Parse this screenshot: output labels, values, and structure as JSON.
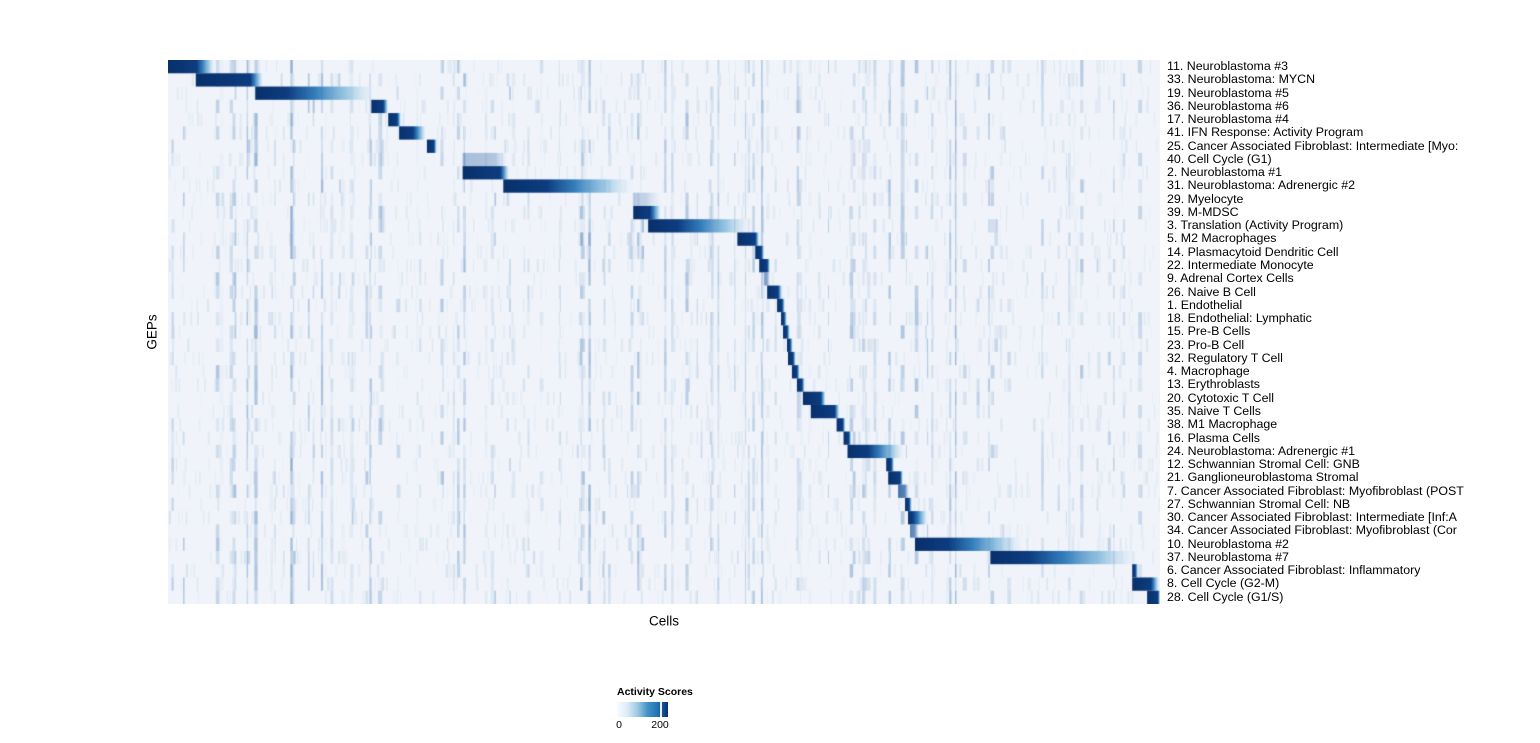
{
  "chart_data": {
    "type": "heatmap",
    "title": "",
    "xlabel": "Cells",
    "ylabel": "GEPs",
    "grid": false,
    "row_labels_position": "right",
    "legend": {
      "title": "Activity Scores",
      "min_label": "0",
      "tick_label": "200",
      "min_value": 0,
      "tick_value": 200,
      "position": "bottom-left"
    },
    "colormap": {
      "name": "Blues",
      "background": "#f0f4fa",
      "low": "#f7fbff",
      "high": "#08306b",
      "scale": [
        "#f7fbff",
        "#deebf7",
        "#9ecae1",
        "#4292c6",
        "#2171b5",
        "#08306b"
      ]
    },
    "n_rows": 41,
    "rows": [
      {
        "label": "11. Neuroblastoma #3",
        "block_start": 0.0,
        "block_peak": 0.029,
        "block_end": 0.047,
        "intensity": 1
      },
      {
        "label": "33. Neuroblastoma: MYCN",
        "block_start": 0.028,
        "block_peak": 0.083,
        "block_end": 0.096,
        "intensity": 1
      },
      {
        "label": "19. Neuroblastoma #5",
        "block_start": 0.088,
        "block_peak": 0.12,
        "block_end": 0.21,
        "intensity": 1
      },
      {
        "label": "36. Neuroblastoma #6",
        "block_start": 0.205,
        "block_peak": 0.217,
        "block_end": 0.222,
        "intensity": 1
      },
      {
        "label": "17. Neuroblastoma #4",
        "block_start": 0.222,
        "block_peak": 0.231,
        "block_end": 0.235,
        "intensity": 1
      },
      {
        "label": "41. IFN Response: Activity Program",
        "block_start": 0.233,
        "block_peak": 0.247,
        "block_end": 0.26,
        "intensity": 1
      },
      {
        "label": "25. Cancer Associated Fibroblast: Intermediate [Myo:",
        "block_start": 0.261,
        "block_peak": 0.268,
        "block_end": 0.271,
        "intensity": 1
      },
      {
        "label": "40. Cell Cycle (G1)",
        "block_start": 0.297,
        "block_peak": 0.33,
        "block_end": 0.342,
        "intensity": 0.35
      },
      {
        "label": "2. Neuroblastoma #1",
        "block_start": 0.297,
        "block_peak": 0.335,
        "block_end": 0.344,
        "intensity": 1
      },
      {
        "label": "31. Neuroblastoma: Adrenergic #2",
        "block_start": 0.338,
        "block_peak": 0.382,
        "block_end": 0.469,
        "intensity": 1
      },
      {
        "label": "29. Myelocyte",
        "block_start": 0.469,
        "block_peak": 0.482,
        "block_end": 0.497,
        "intensity": 0.25
      },
      {
        "label": "39. M-MDSC",
        "block_start": 0.469,
        "block_peak": 0.486,
        "block_end": 0.497,
        "intensity": 1
      },
      {
        "label": "3. Translation (Activity Program)",
        "block_start": 0.484,
        "block_peak": 0.514,
        "block_end": 0.588,
        "intensity": 1
      },
      {
        "label": "5. M2 Macrophages",
        "block_start": 0.574,
        "block_peak": 0.592,
        "block_end": 0.596,
        "intensity": 1
      },
      {
        "label": "14. Plasmacytoid Dendritic Cell",
        "block_start": 0.592,
        "block_peak": 0.598,
        "block_end": 0.601,
        "intensity": 1
      },
      {
        "label": "22. Intermediate Monocyte",
        "block_start": 0.596,
        "block_peak": 0.604,
        "block_end": 0.607,
        "intensity": 1
      },
      {
        "label": "9. Adrenal Cortex Cells",
        "block_start": 0.601,
        "block_peak": 0.604,
        "block_end": 0.607,
        "intensity": 0.6
      },
      {
        "label": "26. Naive B Cell",
        "block_start": 0.604,
        "block_peak": 0.615,
        "block_end": 0.619,
        "intensity": 1
      },
      {
        "label": "1. Endothelial",
        "block_start": 0.614,
        "block_peak": 0.619,
        "block_end": 0.622,
        "intensity": 1
      },
      {
        "label": "18. Endothelial: Lymphatic",
        "block_start": 0.618,
        "block_peak": 0.621,
        "block_end": 0.624,
        "intensity": 1
      },
      {
        "label": "15. Pre-B Cells",
        "block_start": 0.62,
        "block_peak": 0.624,
        "block_end": 0.627,
        "intensity": 1
      },
      {
        "label": "23. Pro-B Cell",
        "block_start": 0.624,
        "block_peak": 0.627,
        "block_end": 0.63,
        "intensity": 1
      },
      {
        "label": "32. Regulatory T Cell",
        "block_start": 0.625,
        "block_peak": 0.63,
        "block_end": 0.633,
        "intensity": 1
      },
      {
        "label": "4. Macrophage",
        "block_start": 0.629,
        "block_peak": 0.634,
        "block_end": 0.637,
        "intensity": 1
      },
      {
        "label": "13. Erythroblasts",
        "block_start": 0.634,
        "block_peak": 0.639,
        "block_end": 0.642,
        "intensity": 1
      },
      {
        "label": "20. Cytotoxic T Cell",
        "block_start": 0.64,
        "block_peak": 0.658,
        "block_end": 0.663,
        "intensity": 1
      },
      {
        "label": "35. Naive T Cells",
        "block_start": 0.648,
        "block_peak": 0.672,
        "block_end": 0.677,
        "intensity": 1
      },
      {
        "label": "38. M1 Macrophage",
        "block_start": 0.674,
        "block_peak": 0.68,
        "block_end": 0.683,
        "intensity": 1
      },
      {
        "label": "16. Plasma Cells",
        "block_start": 0.681,
        "block_peak": 0.686,
        "block_end": 0.689,
        "intensity": 1
      },
      {
        "label": "24. Neuroblastoma: Adrenergic #1",
        "block_start": 0.685,
        "block_peak": 0.706,
        "block_end": 0.742,
        "intensity": 1
      },
      {
        "label": "12. Schwannian Stromal Cell: GNB",
        "block_start": 0.724,
        "block_peak": 0.729,
        "block_end": 0.732,
        "intensity": 1
      },
      {
        "label": "21. Ganglioneuroblastoma Stromal",
        "block_start": 0.726,
        "block_peak": 0.738,
        "block_end": 0.741,
        "intensity": 1
      },
      {
        "label": "7. Cancer Associated Fibroblast: Myofibroblast (POST",
        "block_start": 0.736,
        "block_peak": 0.743,
        "block_end": 0.747,
        "intensity": 0.85
      },
      {
        "label": "27. Schwannian Stromal Cell: NB",
        "block_start": 0.743,
        "block_peak": 0.747,
        "block_end": 0.75,
        "intensity": 1
      },
      {
        "label": "30. Cancer Associated Fibroblast: Intermediate [Inf:A",
        "block_start": 0.746,
        "block_peak": 0.751,
        "block_end": 0.766,
        "intensity": 1
      },
      {
        "label": "34. Cancer Associated Fibroblast: Myofibroblast (Cor",
        "block_start": 0.748,
        "block_peak": 0.753,
        "block_end": 0.757,
        "intensity": 0.75
      },
      {
        "label": "10. Neuroblastoma #2",
        "block_start": 0.753,
        "block_peak": 0.787,
        "block_end": 0.862,
        "intensity": 1
      },
      {
        "label": "37. Neuroblastoma #7",
        "block_start": 0.829,
        "block_peak": 0.869,
        "block_end": 0.978,
        "intensity": 1
      },
      {
        "label": "6. Cancer Associated Fibroblast: Inflammatory",
        "block_start": 0.972,
        "block_peak": 0.975,
        "block_end": 0.978,
        "intensity": 1
      },
      {
        "label": "8. Cell Cycle (G2-M)",
        "block_start": 0.972,
        "block_peak": 0.991,
        "block_end": 0.999,
        "intensity": 1
      },
      {
        "label": "28. Cell Cycle (G1/S)",
        "block_start": 0.987,
        "block_peak": 0.998,
        "block_end": 1.0,
        "intensity": 1
      }
    ]
  }
}
